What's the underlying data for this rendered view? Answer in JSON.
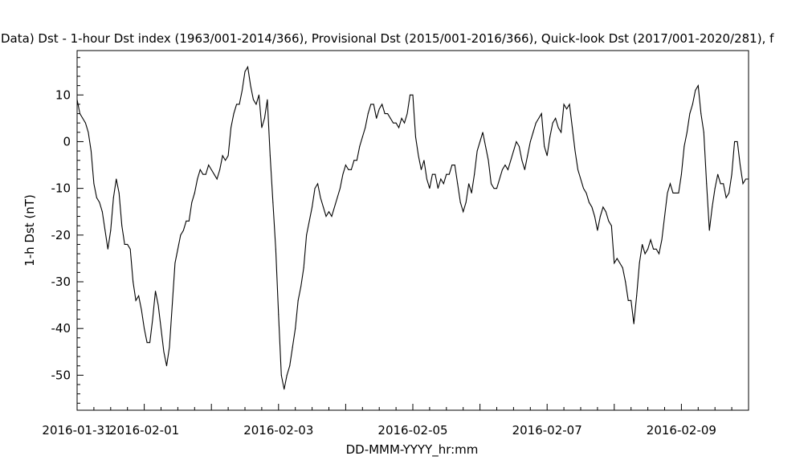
{
  "chart_data": {
    "type": "line",
    "title": "Data)  Dst - 1-hour Dst index (1963/001-2014/366), Provisional Dst (2015/001-2016/366), Quick-look Dst (2017/001-2020/281), f",
    "xlabel": "DD-MMM-YYYY_hr:mm",
    "ylabel": "1-h Dst (nT)",
    "xlim": [
      "2016-01-31T00:00",
      "2016-02-10T00:00"
    ],
    "ylim": [
      -57.5,
      19.5
    ],
    "x_tick_labels": [
      "2016-01-31",
      "2016-02-01",
      "2016-02-03",
      "2016-02-05",
      "2016-02-07",
      "2016-02-09"
    ],
    "y_tick_values": [
      10,
      0,
      -10,
      -20,
      -30,
      -40,
      -50
    ],
    "y_tick_labels": [
      "10",
      "0",
      "-10",
      "-20",
      "-30",
      "-40",
      "-50"
    ],
    "grid": false,
    "line_color": "#000000",
    "series": [
      {
        "start": "2016-01-31T00:00",
        "step_hours": 1,
        "values": [
          9,
          6,
          5,
          4,
          2,
          -2,
          -9,
          -12,
          -13,
          -15,
          -19,
          -23,
          -19,
          -12,
          -8,
          -11,
          -18,
          -22,
          -22,
          -23,
          -30,
          -34,
          -33,
          -36,
          -40,
          -43,
          -43,
          -38,
          -32,
          -35,
          -40,
          -45,
          -48,
          -44,
          -35,
          -26,
          -23,
          -20,
          -19,
          -17,
          -17,
          -13,
          -11,
          -8,
          -6,
          -7,
          -7,
          -5,
          -6,
          -7,
          -8,
          -6,
          -3,
          -4,
          -3,
          3,
          6,
          8,
          8,
          11,
          15,
          16,
          12,
          9,
          8,
          10,
          3,
          5,
          9,
          -3,
          -13,
          -23,
          -37,
          -50,
          -53,
          -50,
          -48,
          -44,
          -40,
          -34,
          -31,
          -27,
          -20,
          -17,
          -14,
          -10,
          -9,
          -12,
          -14,
          -16,
          -15,
          -16,
          -14,
          -12,
          -10,
          -7,
          -5,
          -6,
          -6,
          -4,
          -4,
          -1,
          1,
          3,
          6,
          8,
          8,
          5,
          7,
          8,
          6,
          6,
          5,
          4,
          4,
          3,
          5,
          4,
          6,
          10,
          10,
          1,
          -3,
          -6,
          -4,
          -8,
          -10,
          -7,
          -7,
          -10,
          -8,
          -9,
          -7,
          -7,
          -5,
          -5,
          -9,
          -13,
          -15,
          -13,
          -9,
          -11,
          -7,
          -2,
          0,
          2,
          -1,
          -4,
          -9,
          -10,
          -10,
          -8,
          -6,
          -5,
          -6,
          -4,
          -2,
          0,
          -1,
          -4,
          -6,
          -3,
          0,
          2,
          4,
          5,
          6,
          -1,
          -3,
          1,
          4,
          5,
          3,
          2,
          8,
          7,
          8,
          3,
          -2,
          -6,
          -8,
          -10,
          -11,
          -13,
          -14,
          -16,
          -19,
          -16,
          -14,
          -15,
          -17,
          -18,
          -26,
          -25,
          -26,
          -27,
          -30,
          -34,
          -34,
          -39,
          -33,
          -26,
          -22,
          -24,
          -23,
          -21,
          -23,
          -23,
          -24,
          -21,
          -16,
          -11,
          -9,
          -11,
          -11,
          -11,
          -7,
          -1,
          2,
          6,
          8,
          11,
          12,
          6,
          2,
          -9,
          -19,
          -14,
          -10,
          -7,
          -9,
          -9,
          -12,
          -11,
          -7,
          0,
          0,
          -5,
          -9,
          -8,
          -8
        ]
      }
    ]
  }
}
